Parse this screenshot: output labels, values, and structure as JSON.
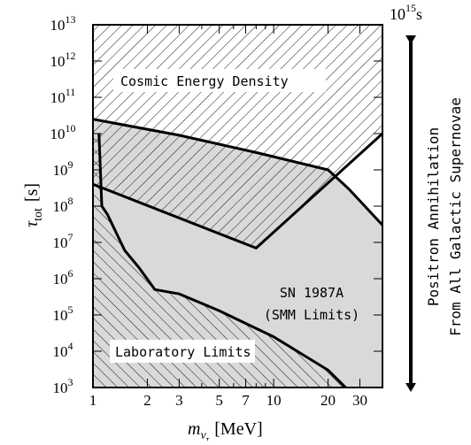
{
  "chart_data": {
    "type": "area",
    "xlabel_sym": "m",
    "xlabel_sub": "ν",
    "xlabel_subsub": "τ",
    "xlabel_unit": "[MeV]",
    "ylabel_sym": "τ",
    "ylabel_sub": "tot",
    "ylabel_unit": "[s]",
    "x_scale": "log",
    "y_scale": "log",
    "xlim": [
      1,
      40
    ],
    "ylim_exp": [
      3,
      13
    ],
    "x_ticks": [
      {
        "v": 1,
        "label": "1"
      },
      {
        "v": 2,
        "label": "2"
      },
      {
        "v": 3,
        "label": "3"
      },
      {
        "v": 5,
        "label": "5"
      },
      {
        "v": 7,
        "label": "7"
      },
      {
        "v": 10,
        "label": "10"
      },
      {
        "v": 20,
        "label": "20"
      },
      {
        "v": 30,
        "label": "30"
      }
    ],
    "x_minor": [
      4,
      6,
      8,
      9,
      40
    ],
    "y_ticks": [
      3,
      4,
      5,
      6,
      7,
      8,
      9,
      10,
      11,
      12,
      13
    ],
    "y_tick_base": "10",
    "regions": [
      {
        "name": "Cosmic Energy Density",
        "label": "Cosmic Energy Density",
        "style": "hatch-back",
        "boundary": [
          [
            1.0,
            10000000000000.0
          ],
          [
            1.0,
            400000000.0
          ],
          [
            8.0,
            7000000.0
          ],
          [
            40.0,
            10000000000.0
          ],
          [
            40.0,
            10000000000000.0
          ]
        ]
      },
      {
        "name": "SN 1987A (SMM Limits)",
        "label_lines": [
          "SN 1987A",
          "(SMM Limits)"
        ],
        "style": "gray",
        "boundary": [
          [
            1.0,
            25000000000.0
          ],
          [
            3.0,
            9000000000.0
          ],
          [
            8.0,
            3000000000.0
          ],
          [
            20.0,
            1000000000.0
          ],
          [
            26.0,
            300000000.0
          ],
          [
            40.0,
            30000000.0
          ],
          [
            40.0,
            1000.0
          ],
          [
            1.0,
            1000.0
          ]
        ]
      },
      {
        "name": "Laboratory Limits",
        "label": "Laboratory Limits",
        "style": "hatch-forward",
        "boundary": [
          [
            1.0,
            10000000000.0
          ],
          [
            1.08,
            10000000000.0
          ],
          [
            1.12,
            100000000.0
          ],
          [
            1.2,
            60000000.0
          ],
          [
            1.5,
            6000000.0
          ],
          [
            1.8,
            2000000.0
          ],
          [
            2.2,
            500000.0
          ],
          [
            3.0,
            380000.0
          ],
          [
            5.0,
            130000.0
          ],
          [
            10.0,
            25000.0
          ],
          [
            20.0,
            3000.0
          ],
          [
            25.0,
            1000.0
          ],
          [
            1.0,
            1000.0
          ]
        ]
      }
    ],
    "annotation": {
      "label_base": "10",
      "label_exp": "15",
      "label_unit": "s",
      "text_lines": [
        "Positron Annihilation",
        "From All Galactic Supernovae"
      ]
    }
  }
}
